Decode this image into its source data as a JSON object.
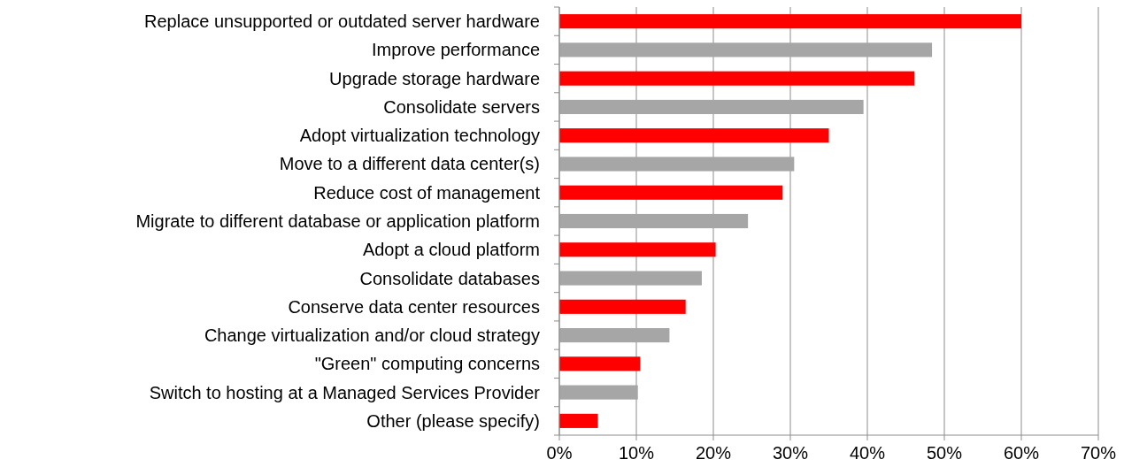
{
  "chart_data": {
    "type": "bar",
    "orientation": "horizontal",
    "categories": [
      "Replace unsupported or outdated server hardware",
      "Improve performance",
      "Upgrade storage hardware",
      "Consolidate servers",
      "Adopt virtualization technology",
      "Move to a different data center(s)",
      "Reduce cost of management",
      "Migrate to different database or application platform",
      "Adopt a cloud platform",
      "Consolidate databases",
      "Conserve data center resources",
      "Change virtualization and/or cloud strategy",
      "\"Green\" computing concerns",
      "Switch to hosting at a Managed Services Provider",
      "Other (please specify)"
    ],
    "values": [
      60,
      48.4,
      46.1,
      39.5,
      35,
      30.5,
      29,
      24.5,
      20.3,
      18.5,
      16.4,
      14.3,
      10.5,
      10.2,
      5
    ],
    "colors": [
      "#ff0000",
      "#a6a6a6",
      "#ff0000",
      "#a6a6a6",
      "#ff0000",
      "#a6a6a6",
      "#ff0000",
      "#a6a6a6",
      "#ff0000",
      "#a6a6a6",
      "#ff0000",
      "#a6a6a6",
      "#ff0000",
      "#a6a6a6",
      "#ff0000"
    ],
    "xlim": [
      0,
      70
    ],
    "xticks": [
      {
        "value": 0,
        "label": "0%"
      },
      {
        "value": 10,
        "label": "10%"
      },
      {
        "value": 20,
        "label": "20%"
      },
      {
        "value": 30,
        "label": "30%"
      },
      {
        "value": 40,
        "label": "40%"
      },
      {
        "value": 50,
        "label": "50%"
      },
      {
        "value": 60,
        "label": "60%"
      },
      {
        "value": 70,
        "label": "70%"
      }
    ],
    "grid": "x"
  }
}
